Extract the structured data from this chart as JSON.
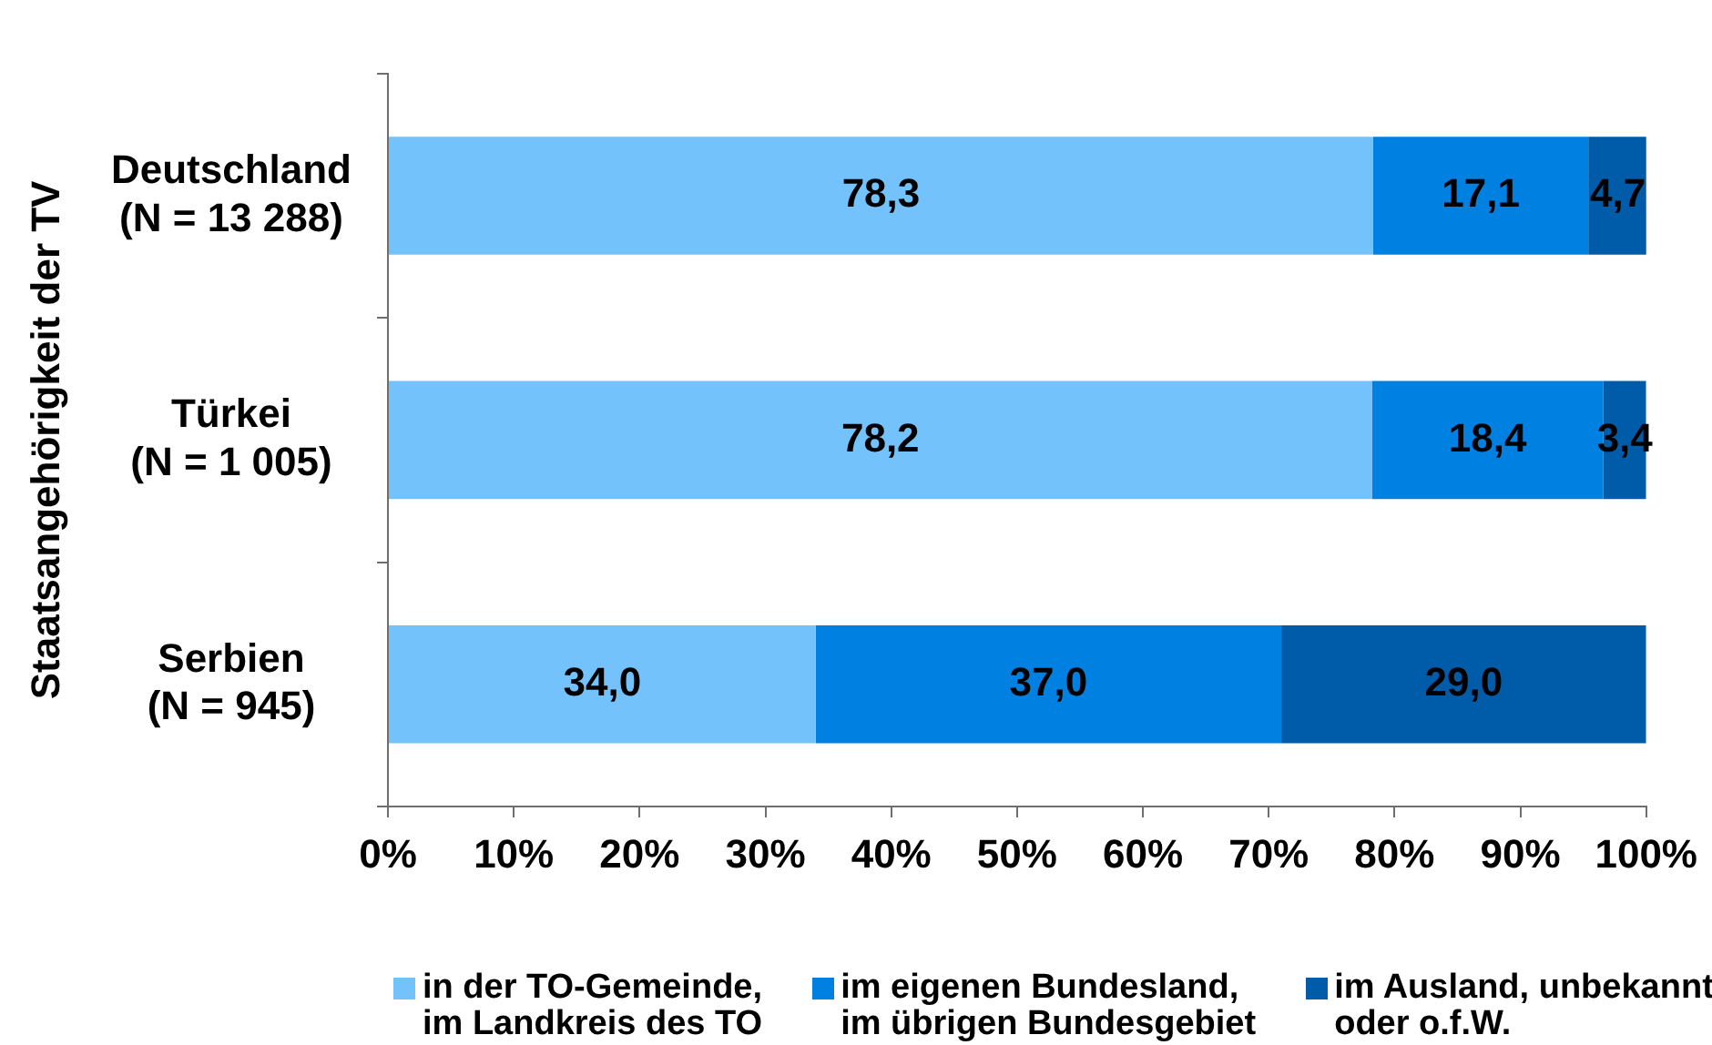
{
  "chart_data": {
    "type": "bar",
    "orientation": "horizontal",
    "stacked": true,
    "ylabel": "Staatsangehörigkeit der TV",
    "categories": [
      "Deutschland\n(N = 13 288)",
      "Türkei\n(N = 1 005)",
      "Serbien\n(N = 945)"
    ],
    "series": [
      {
        "name": "in der TO-Gemeinde,\nim Landkreis des TO",
        "color": "#73c2fb",
        "values": [
          78.3,
          78.2,
          34.0
        ],
        "value_labels": [
          "78,3",
          "78,2",
          "34,0"
        ]
      },
      {
        "name": "im eigenen Bundesland,\nim übrigen Bundesgebiet",
        "color": "#0080e0",
        "values": [
          17.1,
          18.4,
          37.0
        ],
        "value_labels": [
          "17,1",
          "18,4",
          "37,0"
        ]
      },
      {
        "name": "im Ausland, unbekannt\noder o.f.W.",
        "color": "#005ca9",
        "values": [
          4.7,
          3.4,
          29.0
        ],
        "value_labels": [
          "4,7",
          "3,4",
          "29,0"
        ]
      }
    ],
    "xlim": [
      0,
      100
    ],
    "xticks": [
      {
        "value": 0,
        "label": "0%"
      },
      {
        "value": 10,
        "label": "10%"
      },
      {
        "value": 20,
        "label": "20%"
      },
      {
        "value": 30,
        "label": "30%"
      },
      {
        "value": 40,
        "label": "40%"
      },
      {
        "value": 50,
        "label": "50%"
      },
      {
        "value": 60,
        "label": "60%"
      },
      {
        "value": 70,
        "label": "70%"
      },
      {
        "value": 80,
        "label": "80%"
      },
      {
        "value": 90,
        "label": "90%"
      },
      {
        "value": 100,
        "label": "100%"
      }
    ],
    "grid": false,
    "legend": "bottom"
  }
}
